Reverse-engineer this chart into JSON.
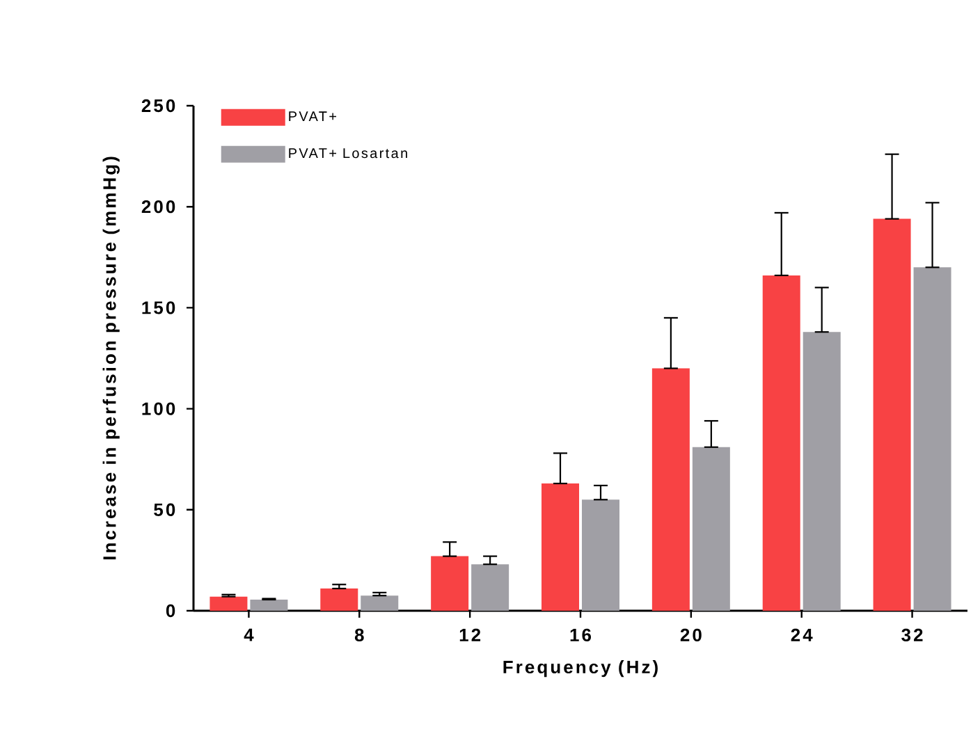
{
  "chart_data": {
    "type": "bar",
    "xlabel": "Frequency (Hz)",
    "ylabel": "Increase in perfusion pressure (mmHg)",
    "categories": [
      "4",
      "8",
      "12",
      "16",
      "20",
      "24",
      "32"
    ],
    "series": [
      {
        "name": "PVAT+",
        "color": "#f84244",
        "values": [
          7,
          11,
          27,
          63,
          120,
          166,
          194
        ],
        "errors": [
          [
            7,
            8
          ],
          [
            11,
            13
          ],
          [
            27,
            34
          ],
          [
            63,
            78
          ],
          [
            120,
            145
          ],
          [
            166,
            197
          ],
          [
            194,
            226
          ]
        ]
      },
      {
        "name": "PVAT+ Losartan",
        "color": "#a09fa5",
        "values": [
          5.5,
          7.5,
          23,
          55,
          81,
          138,
          170
        ],
        "errors": [
          [
            5.5,
            6
          ],
          [
            7.5,
            9
          ],
          [
            23,
            27
          ],
          [
            55,
            62
          ],
          [
            81,
            94
          ],
          [
            138,
            160
          ],
          [
            170,
            202
          ]
        ]
      }
    ],
    "ylim": [
      0,
      250
    ],
    "yticks": [
      0,
      50,
      100,
      150,
      200,
      250
    ],
    "grid": false,
    "legend": "top left"
  }
}
